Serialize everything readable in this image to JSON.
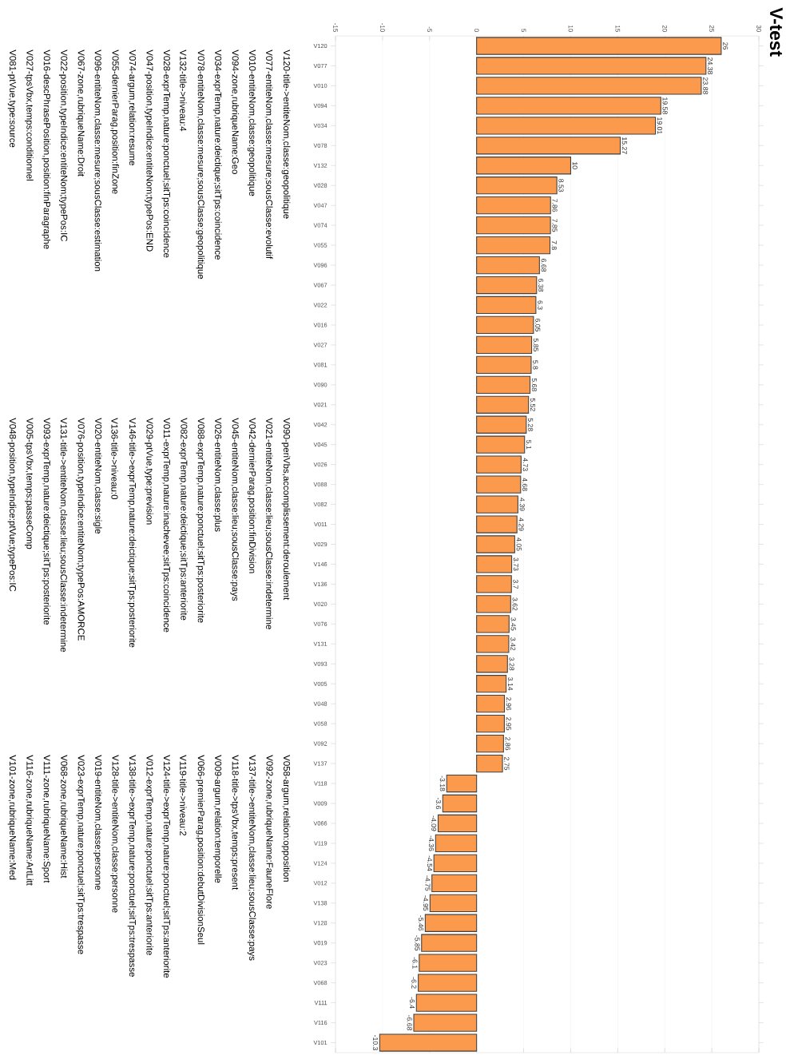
{
  "chart_data": {
    "type": "bar",
    "orientation": "horizontal",
    "title": "V-test",
    "categories": [
      "V120",
      "V077",
      "V010",
      "V094",
      "V034",
      "V078",
      "V132",
      "V028",
      "V047",
      "V074",
      "V055",
      "V096",
      "V067",
      "V022",
      "V016",
      "V027",
      "V081",
      "V090",
      "V021",
      "V042",
      "V045",
      "V026",
      "V088",
      "V082",
      "V011",
      "V029",
      "V146",
      "V136",
      "V020",
      "V076",
      "V131",
      "V093",
      "V005",
      "V048",
      "V058",
      "V092",
      "V137",
      "V118",
      "V009",
      "V066",
      "V119",
      "V124",
      "V012",
      "V138",
      "V128",
      "V019",
      "V023",
      "V068",
      "V111",
      "V116",
      "V101"
    ],
    "values": [
      26,
      24.38,
      23.88,
      19.58,
      19.01,
      15.27,
      10,
      8.53,
      7.86,
      7.85,
      7.8,
      6.68,
      6.38,
      6.3,
      6.05,
      5.85,
      5.8,
      5.68,
      5.52,
      5.28,
      5.1,
      4.73,
      4.68,
      4.39,
      4.29,
      4.05,
      3.73,
      3.7,
      3.62,
      3.45,
      3.42,
      3.28,
      3.14,
      2.96,
      2.95,
      2.86,
      2.75,
      -3.18,
      -3.6,
      -4.09,
      -4.36,
      -4.54,
      -4.75,
      -4.95,
      -5.46,
      -5.85,
      -6.1,
      -6.2,
      -6.4,
      -6.68,
      -10.3
    ],
    "color": "#fb9a4c",
    "data_labels": true,
    "xlim": [
      -15,
      30
    ],
    "xticks": [
      -15,
      -10,
      -5,
      0,
      5,
      10,
      15,
      20,
      25,
      30
    ],
    "grid": "x",
    "annotations": [
      "V120-title->entiteNom,classe:geopolitique",
      "V077-entiteNom,classe:mesure;sousClasse:evolutif",
      "V010-entiteNom,classe:geopolitique",
      "V094-zone,rubriqueName:Geo",
      "V034-exprTemp,nature:deictique;sitTps:coincidence",
      "V078-entiteNom,classe:mesure;sousClasse:geopolitique",
      "V132-title->niveau:4",
      "V028-exprTemp,nature:ponctuel;sitTps:coincidence",
      "V047-position,typeIndice:entiteNom;typePos:END",
      "V074-argum,relation:resume",
      "V055-dernierParag,position:finZone",
      "V096-entiteNom,classe:mesure;sousClasse:estimation",
      "V067-zone,rubriqueName:Droit",
      "V022-position,typeIndice:entiteNom;typePos:IC",
      "V016-descPhrasePosition,position:finParagraphe",
      "V027-tpsVbx,temps:conditionnel",
      "V081-ptVue,type:source",
      "V090-periVbs,accomplissement:deroulement",
      "V021-entiteNom,classe:lieu;sousClasse:indetermine",
      "V042-dernierParag,position:finDivision",
      "V045-entiteNom,classe:lieu;sousClasse:pays",
      "V026-entiteNom,classe:plus",
      "V088-exprTemp,nature:ponctuel;sitTps:posteriorite",
      "V082-exprTemp,nature:deictique;sitTps:anteriorite",
      "V011-exprTemp,nature:inachevee;sitTps:coincidence",
      "V029-ptVue,type:prevision",
      "V146-title->exprTemp,nature:deictique;sitTps:posteriorite",
      "V136-title->niveau:0",
      "V020-entiteNom,classe:sigle",
      "V076-position,typeIndice:entiteNom;typePos:AMORCE",
      "V131-title->entiteNom,classe:lieu;sousClasse:indetermine",
      "V093-exprTemp,nature:deictique;sitTps:posteriorite",
      "V005-tpsVbx,temps:passeComp",
      "V048-position,typeIndice:ptVue;typePos:IC",
      "V058-argum,relation:opposition",
      "V092-zone,rubriqueName:FauneFlore",
      "V137-title->entiteNom,classe:lieu;sousClasse:pays",
      "V118-title->tpsVbx,temps:present",
      "V009-argum,relation:temporelle",
      "V066-premierParag,position:debutDivisionSeul",
      "V119-title->niveau:2",
      "V124-title->exprTemp,nature:ponctuel;sitTps:anteriorite",
      "V012-exprTemp,nature:ponctuel;sitTps:anteriorite",
      "V138-title->exprTemp,nature:ponctuel;sitTps:trespasse",
      "V128-title->entiteNom,classe:personne",
      "V019-entiteNom,classe:personne",
      "V023-exprTemp,nature:ponctuel;sitTps:trespasse",
      "V068-zone,rubriqueName:Hist",
      "V111-zone,rubriqueName:Sport",
      "V116-zone,rubriqueName:ArtLitt",
      "V101-zone,rubriqueName:Med"
    ]
  }
}
